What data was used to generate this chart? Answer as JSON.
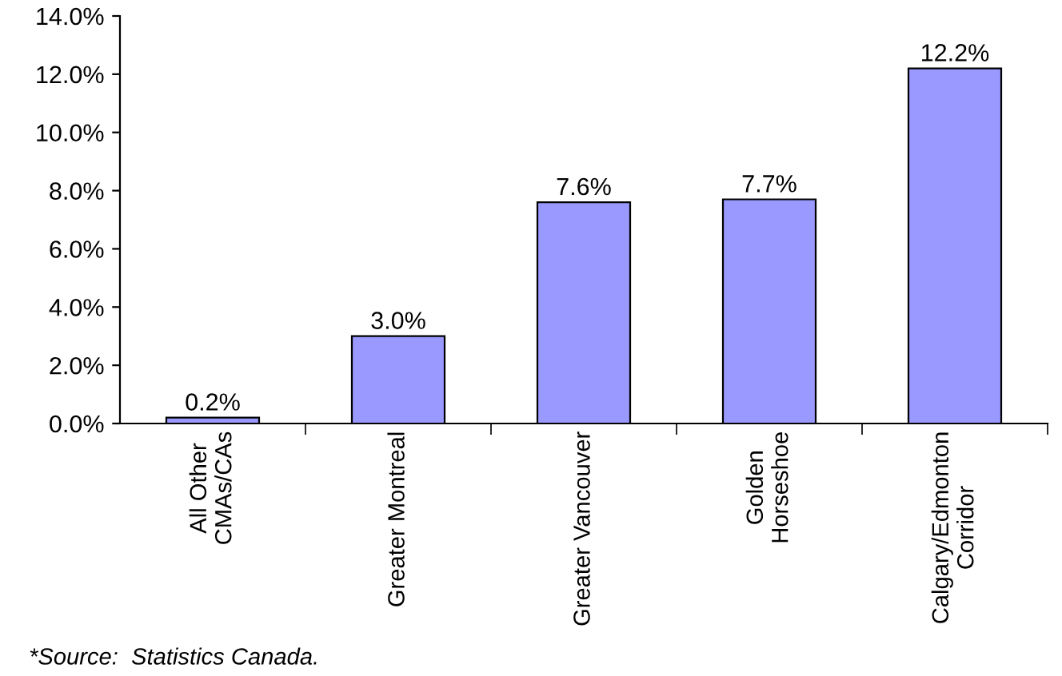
{
  "chart_data": {
    "type": "bar",
    "categories": [
      "All Other\nCMAs/CAs",
      "Greater Montreal",
      "Greater Vancouver",
      "Golden\nHorseshoe",
      "Calgary/Edmonton\nCorridor"
    ],
    "values": [
      0.2,
      3.0,
      7.6,
      7.7,
      12.2
    ],
    "value_labels": [
      "0.2%",
      "3.0%",
      "7.6%",
      "7.7%",
      "12.2%"
    ],
    "color": "#9999ff",
    "ylim": [
      0,
      14
    ],
    "yticks": [
      {
        "value": 0,
        "label": "0.0%"
      },
      {
        "value": 2,
        "label": "2.0%"
      },
      {
        "value": 4,
        "label": "4.0%"
      },
      {
        "value": 6,
        "label": "6.0%"
      },
      {
        "value": 8,
        "label": "8.0%"
      },
      {
        "value": 10,
        "label": "10.0%"
      },
      {
        "value": 12,
        "label": "12.0%"
      },
      {
        "value": 14,
        "label": "14.0%"
      }
    ],
    "grid": false,
    "annotations": [
      "*Source:  Statistics Canada."
    ]
  }
}
